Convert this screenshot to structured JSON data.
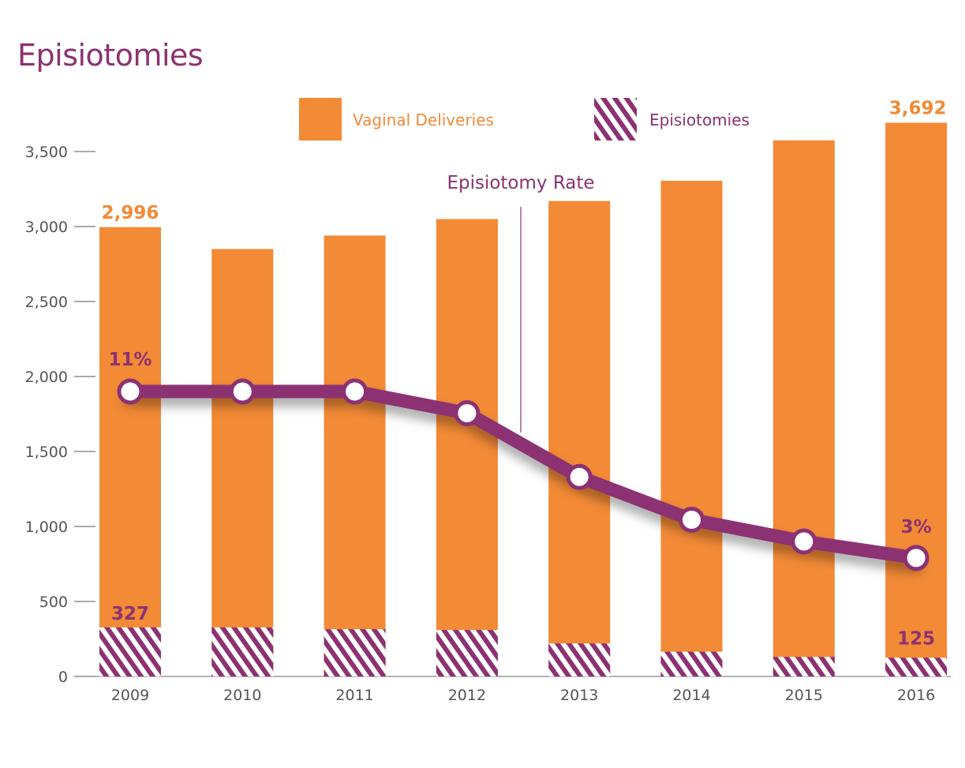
{
  "title": "Episiotomies",
  "colors": {
    "bar": "#f28a36",
    "accent": "#8c3272",
    "episiotomy_label": "#8c3272",
    "delivery_label": "#f28a36",
    "axis_text": "#555555"
  },
  "chart_data": {
    "type": "bar",
    "title": "Episiotomies",
    "xlabel": "",
    "ylabel": "",
    "categories": [
      "2009",
      "2010",
      "2011",
      "2012",
      "2013",
      "2014",
      "2015",
      "2016"
    ],
    "ylim": [
      0,
      3500
    ],
    "yticks": [
      0,
      500,
      1000,
      1500,
      2000,
      2500,
      3000,
      3500
    ],
    "ytick_labels": [
      "0",
      "500",
      "1,000",
      "1,500",
      "2,000",
      "2,500",
      "3,000",
      "3,500"
    ],
    "grid": false,
    "legend": {
      "placement": "top",
      "entries": [
        {
          "label": "Vaginal Deliveries",
          "style": "solid",
          "color": "#f28a36"
        },
        {
          "label": "Episiotomies",
          "style": "hatched",
          "color": "#8c3272"
        }
      ]
    },
    "series": [
      {
        "name": "Vaginal Deliveries",
        "values": [
          2996,
          2850,
          2940,
          3050,
          3170,
          3305,
          3575,
          3692
        ]
      },
      {
        "name": "Episiotomies",
        "values": [
          327,
          327,
          315,
          310,
          220,
          165,
          130,
          125
        ]
      }
    ],
    "rate_line": {
      "name": "Episiotomy Rate",
      "plotted_values_y_units": [
        1900,
        1900,
        1900,
        1755,
        1330,
        1045,
        900,
        790
      ],
      "start_label": "11%",
      "end_label": "3%"
    },
    "data_labels": [
      {
        "series": "Vaginal Deliveries",
        "category": "2009",
        "text": "2,996"
      },
      {
        "series": "Vaginal Deliveries",
        "category": "2016",
        "text": "3,692"
      },
      {
        "series": "Episiotomies",
        "category": "2009",
        "text": "327"
      },
      {
        "series": "Episiotomies",
        "category": "2016",
        "text": "125"
      },
      {
        "series": "Episiotomy Rate",
        "category": "2009",
        "text": "11%"
      },
      {
        "series": "Episiotomy Rate",
        "category": "2016",
        "text": "3%"
      }
    ],
    "annotations": [
      {
        "text": "Episiotomy Rate"
      }
    ]
  }
}
